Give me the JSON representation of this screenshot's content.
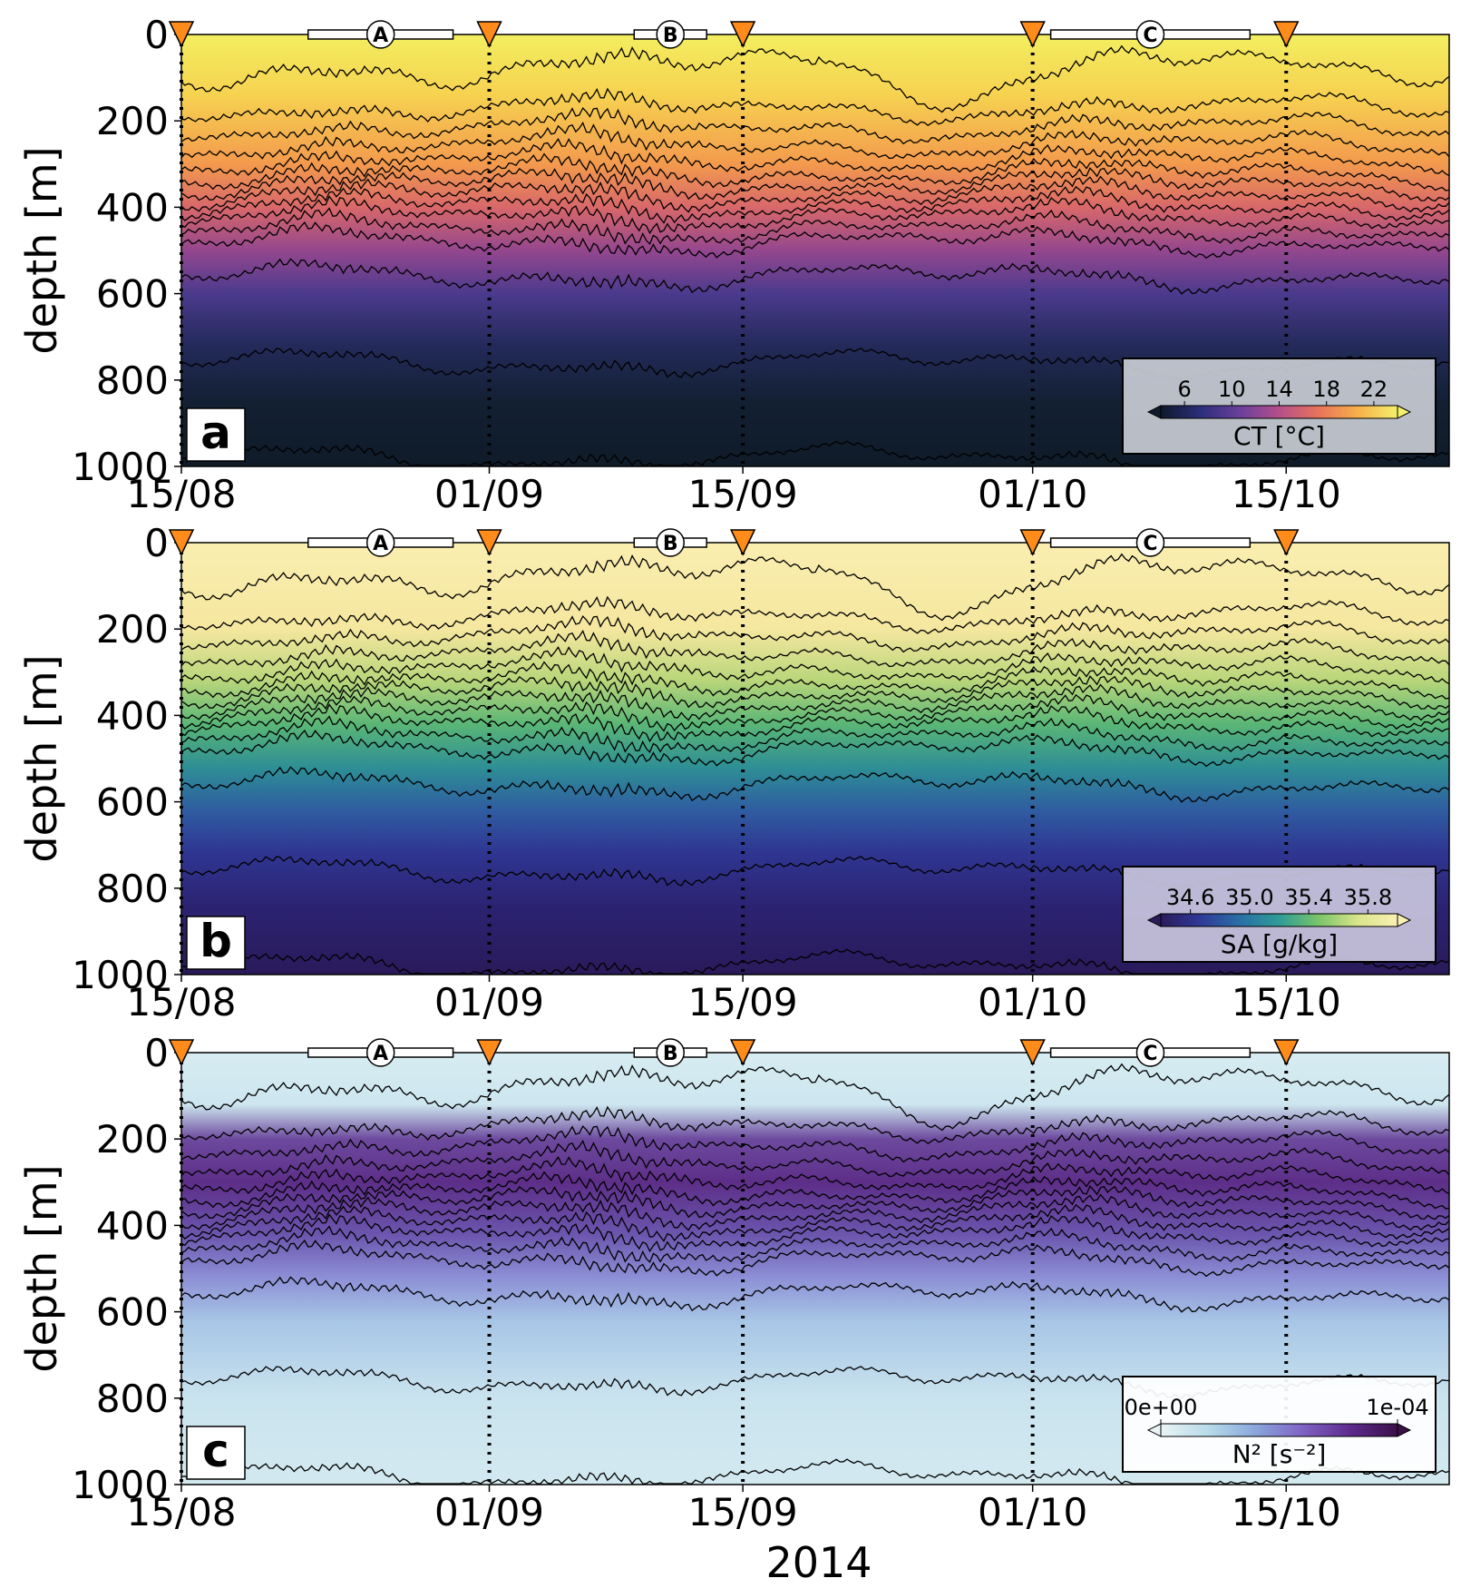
{
  "figure": {
    "xlabel": "2014",
    "date_ticks": [
      {
        "date": "2014-08-15",
        "label": "15/08"
      },
      {
        "date": "2014-09-01",
        "label": "01/09"
      },
      {
        "date": "2014-09-15",
        "label": "15/09"
      },
      {
        "date": "2014-10-01",
        "label": "01/10"
      },
      {
        "date": "2014-10-15",
        "label": "15/10"
      }
    ],
    "x_range": [
      "2014-08-15",
      "2014-10-24"
    ],
    "depth_ticks": [
      "0",
      "200",
      "400",
      "600",
      "800",
      "1000"
    ],
    "markers": {
      "triangle_dates": [
        "2014-08-15",
        "2014-09-01",
        "2014-09-15",
        "2014-10-01",
        "2014-10-15"
      ],
      "triangle_color": "#ff8c1a",
      "periods": [
        {
          "label": "A",
          "start": "2014-08-22",
          "end": "2014-08-30"
        },
        {
          "label": "B",
          "start": "2014-09-09",
          "end": "2014-09-13"
        },
        {
          "label": "C",
          "start": "2014-10-02",
          "end": "2014-10-13"
        }
      ]
    }
  },
  "chart_data": [
    {
      "type": "heatmap",
      "panel": "a",
      "ylabel": "depth [m]",
      "ylim": [
        1000,
        0
      ],
      "colorbar": {
        "label": "CT [°C]",
        "ticks": [
          "6",
          "10",
          "14",
          "18",
          "22"
        ],
        "range": [
          4,
          24
        ],
        "colormap": [
          "#0f1a2a",
          "#2b2e7a",
          "#6a3f9c",
          "#b4508a",
          "#e8735a",
          "#f7b04a",
          "#f4f06a"
        ]
      },
      "isolines_depth_m": [
        80,
        170,
        215,
        255,
        290,
        320,
        345,
        370,
        395,
        420,
        450,
        480,
        560,
        760,
        980
      ]
    },
    {
      "type": "heatmap",
      "panel": "b",
      "ylabel": "depth [m]",
      "ylim": [
        1000,
        0
      ],
      "colorbar": {
        "label": "SA [g/kg]",
        "ticks": [
          "34.6",
          "35.0",
          "35.4",
          "35.8"
        ],
        "range": [
          34.4,
          36.0
        ],
        "colormap": [
          "#2a1b5c",
          "#2f3a96",
          "#2a6fa6",
          "#2e9c97",
          "#7ac46a",
          "#d9e58a",
          "#fbf0b4"
        ]
      },
      "isolines_depth_m": [
        80,
        170,
        215,
        255,
        290,
        320,
        345,
        370,
        395,
        420,
        450,
        480,
        560,
        760,
        980
      ]
    },
    {
      "type": "heatmap",
      "panel": "c",
      "ylabel": "depth [m]",
      "ylim": [
        1000,
        0
      ],
      "colorbar": {
        "label": "N² [s⁻²]",
        "ticks": [
          "0e+00",
          "1e-04"
        ],
        "range": [
          0,
          0.0001
        ],
        "colormap": [
          "#eaf3f5",
          "#b7dbe9",
          "#8aa6dc",
          "#7f62c4",
          "#5e2b8e",
          "#3b0f48"
        ]
      },
      "isolines_depth_m": [
        80,
        170,
        215,
        255,
        290,
        320,
        345,
        370,
        395,
        420,
        450,
        480,
        560,
        760,
        980
      ]
    }
  ]
}
